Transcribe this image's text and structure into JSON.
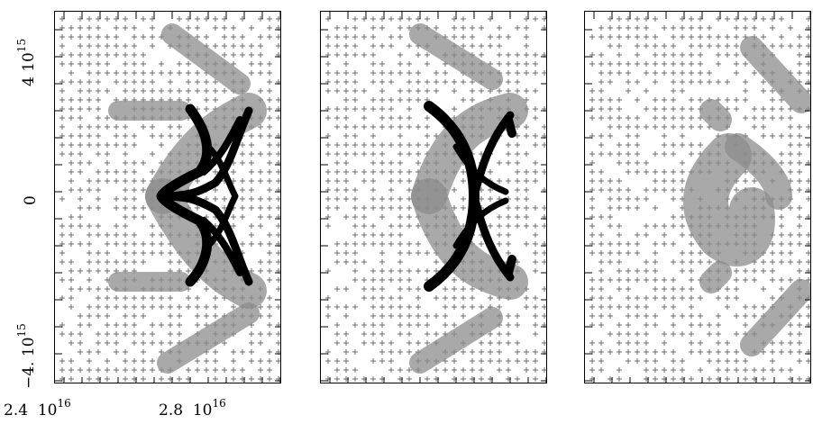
{
  "figure": {
    "panels": [
      "left",
      "middle",
      "right"
    ],
    "y_axis": {
      "top_label_mantissa": "4",
      "top_label_base": "10",
      "top_label_exp": "15",
      "mid_label": "0",
      "bottom_label_mantissa": "−4.",
      "bottom_label_base": "10",
      "bottom_label_exp": "15"
    },
    "x_axis": {
      "left_label_mantissa": "2.4",
      "left_label_base": "10",
      "left_label_exp": "16",
      "right_label_mantissa": "2.8",
      "right_label_base": "10",
      "right_label_exp": "16"
    },
    "colors": {
      "ink": "#000000",
      "haze": "#8c8c8c",
      "grid": "#6e6e6e"
    }
  }
}
